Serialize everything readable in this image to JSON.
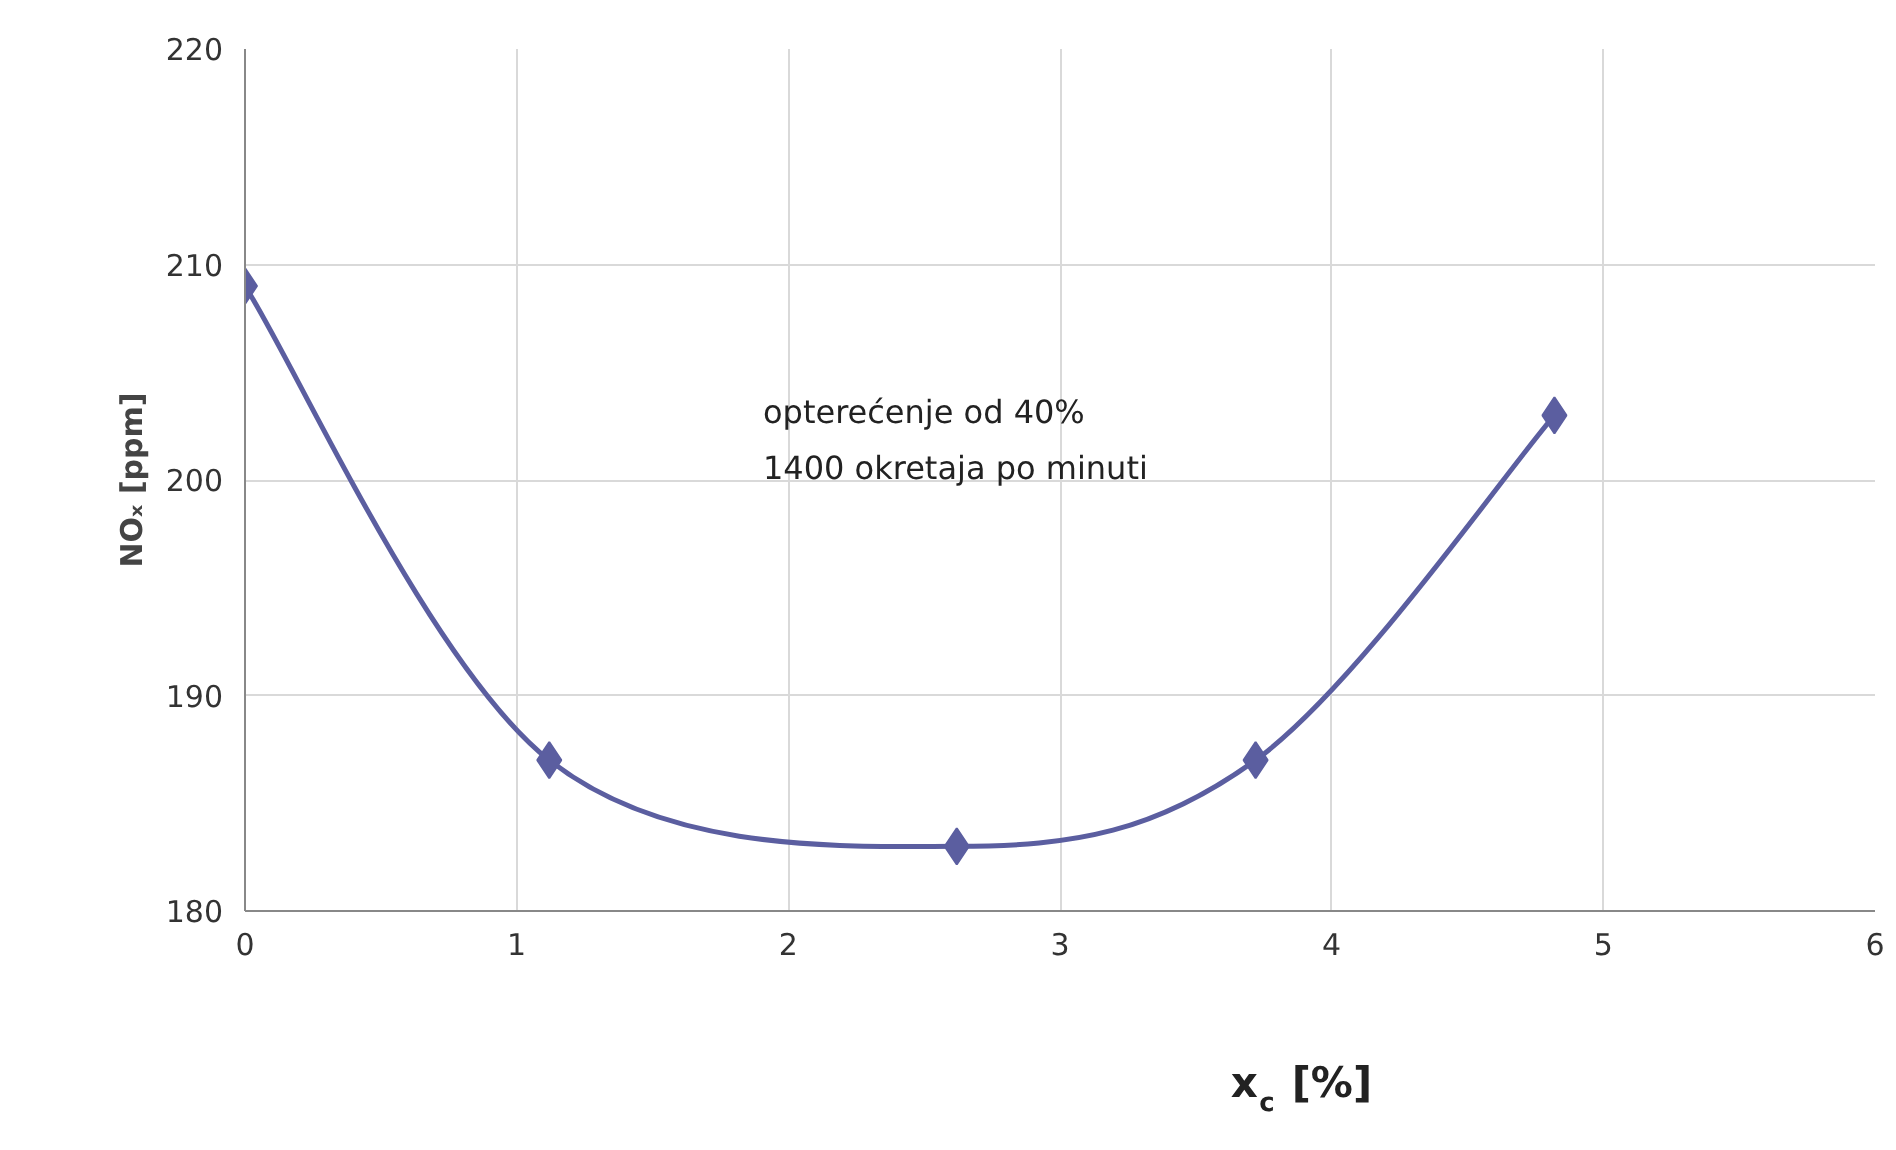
{
  "chart_data": {
    "type": "line",
    "xlabel": "x$_{c}$ [%]",
    "ylabel": "NOₓ [ppm]",
    "x": [
      0,
      1.12,
      2.62,
      3.72,
      4.82
    ],
    "series": [
      {
        "color": "#5b5ea0",
        "values": [
          209,
          187,
          183,
          187,
          203
        ]
      }
    ],
    "xlim": [
      0,
      6
    ],
    "xticks": [
      0,
      1,
      2,
      3,
      4,
      5,
      6
    ],
    "ylim": [
      180,
      220
    ],
    "yticks": [
      180,
      190,
      200,
      210,
      220
    ],
    "grid": true,
    "marker": "diamond",
    "line_style": "solid",
    "annotations": [
      "opterećenje od 40%",
      "1400 okretaja po minuti"
    ]
  }
}
